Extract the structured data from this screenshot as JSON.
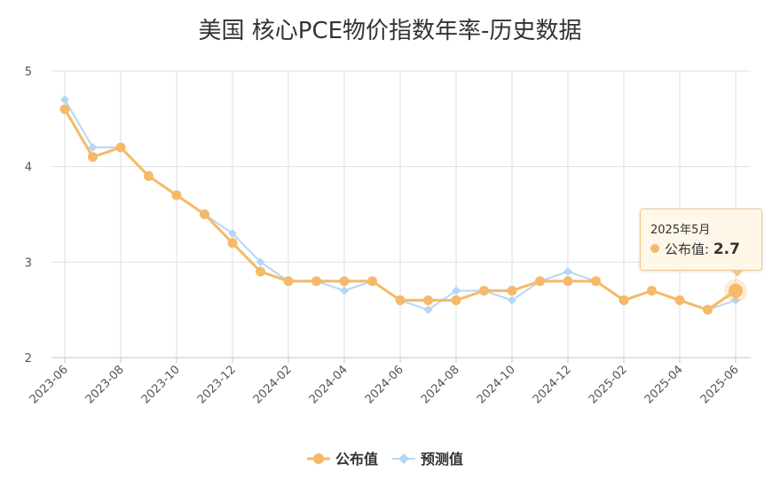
{
  "chart_data": {
    "type": "line",
    "title": "美国 核心PCE物价指数年率-历史数据",
    "xlabel": "",
    "ylabel": "",
    "ylim": [
      2,
      5
    ],
    "y_ticks": [
      "2",
      "3",
      "4",
      "5"
    ],
    "grid": true,
    "legend_position": "bottom-center",
    "x": [
      "2023-06",
      "2023-07",
      "2023-08",
      "2023-09",
      "2023-10",
      "2023-11",
      "2023-12",
      "2024-01",
      "2024-02",
      "2024-03",
      "2024-04",
      "2024-05",
      "2024-06",
      "2024-07",
      "2024-08",
      "2024-09",
      "2024-10",
      "2024-11",
      "2024-12",
      "2025-01",
      "2025-02",
      "2025-03",
      "2025-04",
      "2025-05",
      "2025-06"
    ],
    "x_tick_labels": [
      "2023-06",
      "2023-08",
      "2023-10",
      "2023-12",
      "2024-02",
      "2024-04",
      "2024-06",
      "2024-08",
      "2024-10",
      "2024-12",
      "2025-02",
      "2025-04",
      "2025-06"
    ],
    "series": [
      {
        "name": "公布值",
        "color": "#f5b969",
        "marker": "circle",
        "values": [
          4.6,
          4.1,
          4.2,
          3.9,
          3.7,
          3.5,
          3.2,
          2.9,
          2.8,
          2.8,
          2.8,
          2.8,
          2.6,
          2.6,
          2.6,
          2.7,
          2.7,
          2.8,
          2.8,
          2.8,
          2.6,
          2.7,
          2.6,
          2.5,
          2.7
        ]
      },
      {
        "name": "预测值",
        "color": "#b6d7f4",
        "marker": "diamond",
        "values": [
          4.7,
          4.2,
          4.2,
          3.9,
          3.7,
          3.5,
          3.3,
          3.0,
          2.8,
          2.8,
          2.7,
          2.8,
          2.6,
          2.5,
          2.7,
          2.7,
          2.6,
          2.8,
          2.9,
          2.8,
          2.6,
          2.7,
          2.6,
          2.5,
          2.6
        ]
      }
    ],
    "tooltip": {
      "date": "2025年5月",
      "label": "公布值:",
      "value": "2.7",
      "series_index": 0,
      "point_index": 24
    }
  }
}
